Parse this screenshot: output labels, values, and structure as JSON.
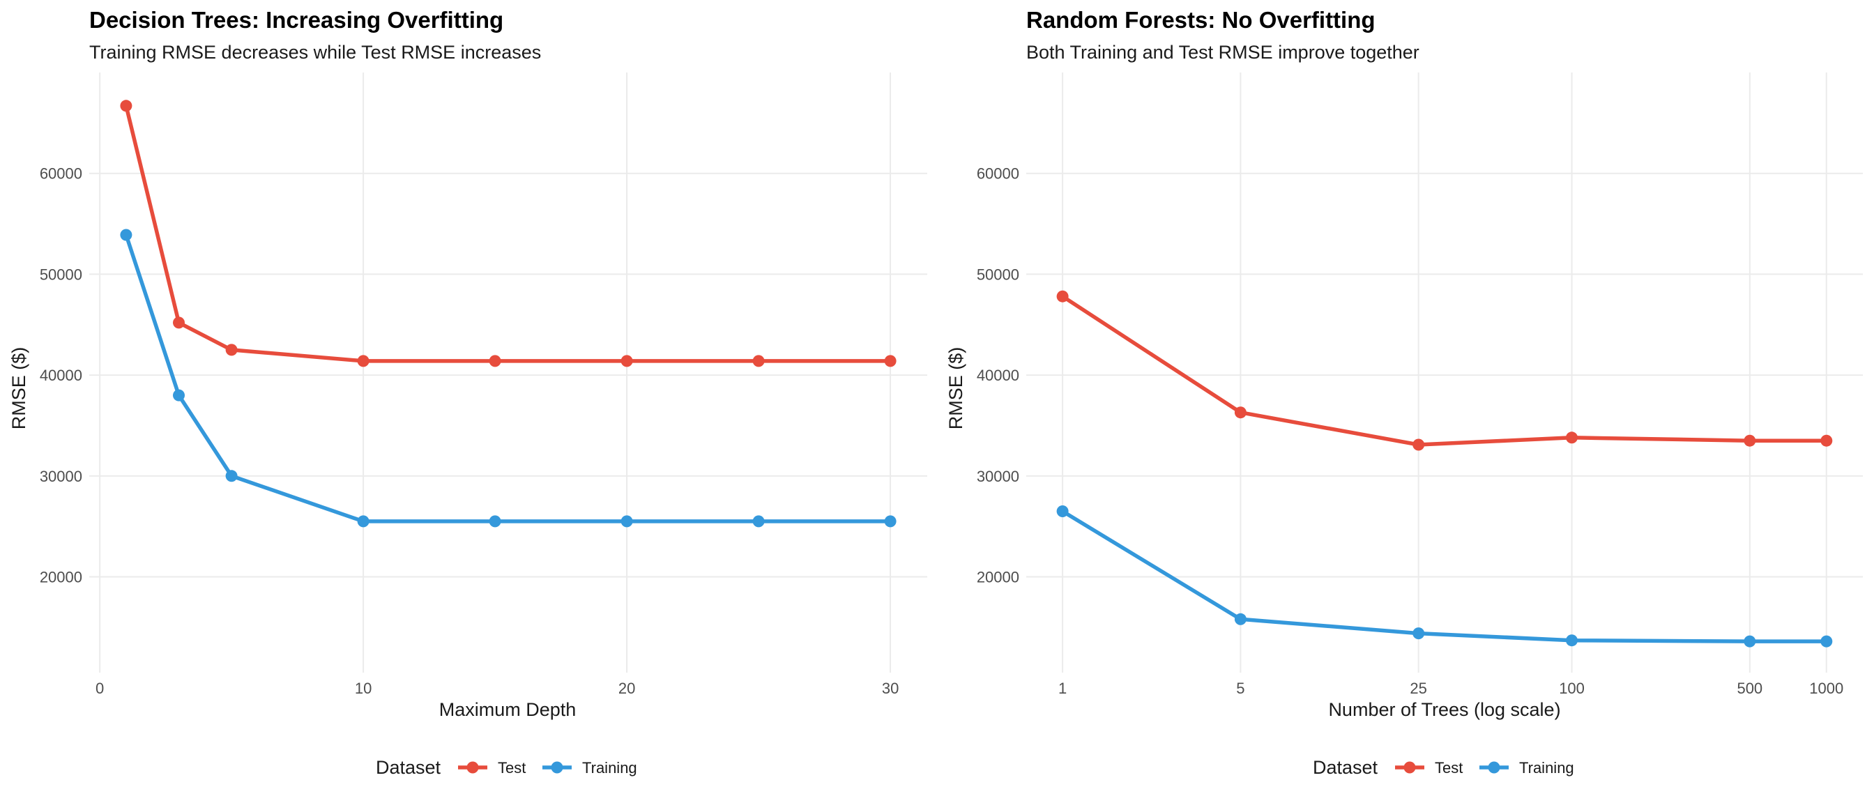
{
  "colors": {
    "Test": "#e74c3c",
    "Training": "#3498db",
    "grid": "#ebebeb"
  },
  "chart_data": [
    {
      "type": "line",
      "title": "Decision Trees: Increasing Overfitting",
      "subtitle": "Training RMSE decreases while Test RMSE increases",
      "xlabel": "Maximum Depth",
      "ylabel": "RMSE ($)",
      "x_scale": "linear",
      "xlim": [
        -0.4,
        31.4
      ],
      "ylim": [
        10500,
        70000
      ],
      "xticks": [
        0,
        10,
        20,
        30
      ],
      "xtick_labels": [
        "0",
        "10",
        "20",
        "30"
      ],
      "yticks": [
        20000,
        30000,
        40000,
        50000,
        60000
      ],
      "ytick_labels": [
        "20000",
        "30000",
        "40000",
        "50000",
        "60000"
      ],
      "grid": true,
      "legend_title": "Dataset",
      "legend_position": "bottom",
      "x": [
        1,
        3,
        5,
        10,
        15,
        20,
        25,
        30
      ],
      "series": [
        {
          "name": "Test",
          "values": [
            66700,
            45200,
            42500,
            41400,
            41400,
            41400,
            41400,
            41400
          ]
        },
        {
          "name": "Training",
          "values": [
            53900,
            38000,
            30000,
            25500,
            25500,
            25500,
            25500,
            25500
          ]
        }
      ]
    },
    {
      "type": "line",
      "title": "Random Forests: No Overfitting",
      "subtitle": "Both Training and Test RMSE improve together",
      "xlabel": "Number of Trees (log scale)",
      "ylabel": "RMSE ($)",
      "x_scale": "log10",
      "xlim": [
        0.72,
        1390
      ],
      "ylim": [
        10500,
        70000
      ],
      "xticks": [
        1,
        5,
        25,
        100,
        500,
        1000
      ],
      "xtick_labels": [
        "1",
        "5",
        "25",
        "100",
        "500",
        "1000"
      ],
      "yticks": [
        20000,
        30000,
        40000,
        50000,
        60000
      ],
      "ytick_labels": [
        "20000",
        "30000",
        "40000",
        "50000",
        "60000"
      ],
      "grid": true,
      "legend_title": "Dataset",
      "legend_position": "bottom",
      "x": [
        1,
        5,
        25,
        100,
        500,
        1000
      ],
      "series": [
        {
          "name": "Test",
          "values": [
            47800,
            36300,
            33100,
            33800,
            33500,
            33500
          ]
        },
        {
          "name": "Training",
          "values": [
            26500,
            15800,
            14400,
            13700,
            13600,
            13600
          ]
        }
      ]
    }
  ]
}
